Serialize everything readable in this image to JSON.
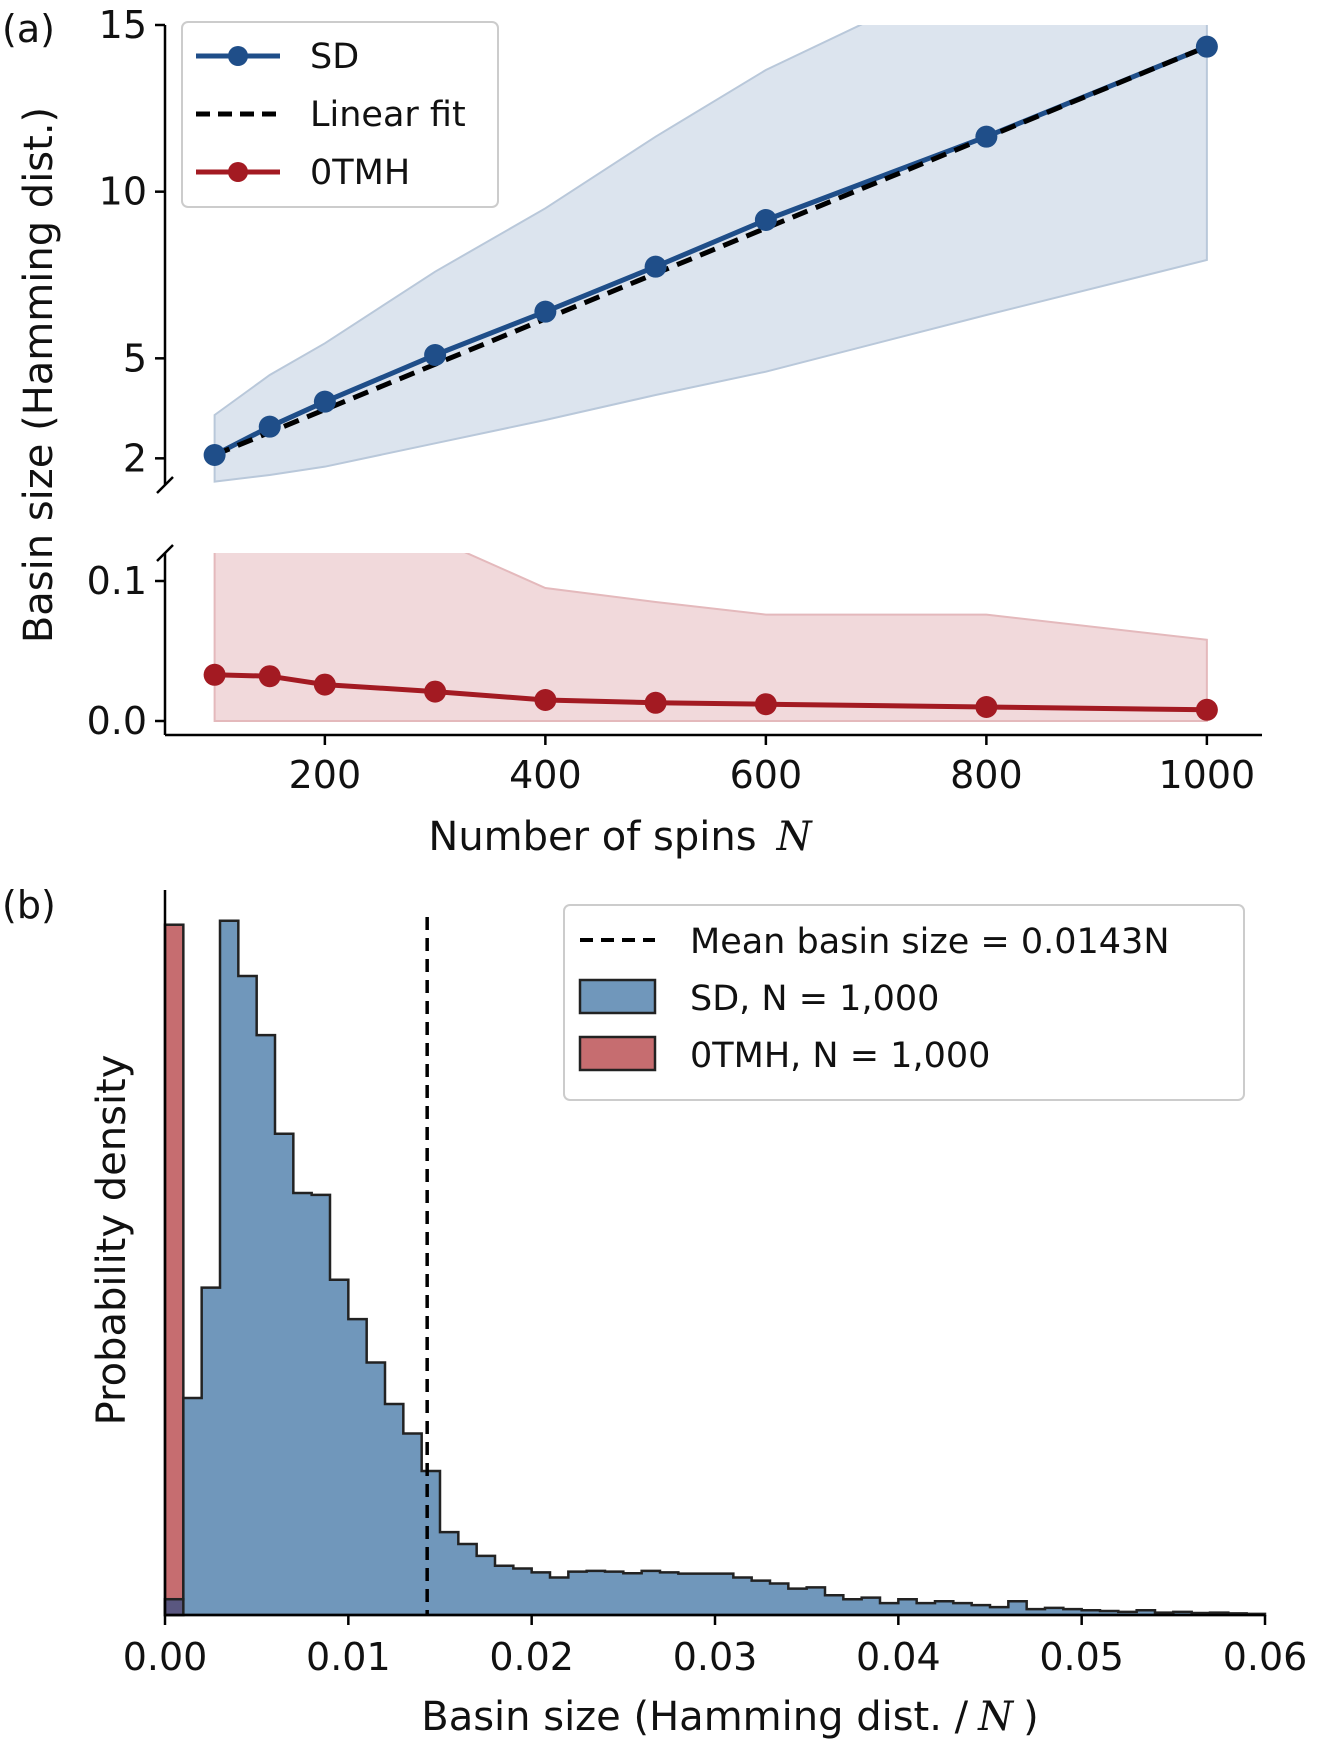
{
  "chart_data": [
    {
      "panel": "(a)",
      "type": "line",
      "ylabel": "Basin size (Hamming dist.)",
      "xlabel": "Number of spins",
      "xlabel_var": "N",
      "x": [
        100,
        150,
        200,
        300,
        400,
        500,
        600,
        800,
        1000
      ],
      "xlim": [
        55,
        1050
      ],
      "xticks": [
        "200",
        "400",
        "600",
        "800",
        "1000"
      ],
      "xtick_values": [
        200,
        400,
        600,
        800,
        1000
      ],
      "broken_y_axis": true,
      "upper": {
        "ylim": [
          1.2,
          15
        ],
        "yticks": [
          "2",
          "5",
          "10",
          "15"
        ],
        "ytick_values": [
          2,
          5,
          10,
          15
        ]
      },
      "lower": {
        "ylim": [
          -0.01,
          0.12
        ],
        "yticks": [
          "0.0",
          "0.1"
        ],
        "ytick_values": [
          0.0,
          0.1
        ]
      },
      "series": [
        {
          "name": "SD",
          "color": "#1f4e89",
          "values": [
            2.1,
            2.95,
            3.7,
            5.1,
            6.4,
            7.75,
            9.15,
            11.65,
            14.35
          ],
          "band_low": [
            1.3,
            1.5,
            1.75,
            2.45,
            3.15,
            3.9,
            4.6,
            6.3,
            7.95
          ],
          "band_high": [
            3.3,
            4.5,
            5.45,
            7.6,
            9.5,
            11.65,
            13.65,
            16.8,
            20.0
          ],
          "band_color": "#dce4ee"
        },
        {
          "name": "Linear fit",
          "color": "#000000",
          "style": "dashed",
          "values": [
            2.1,
            14.35
          ],
          "x": [
            100,
            1000
          ]
        },
        {
          "name": "0TMH",
          "color": "#a31a22",
          "values": [
            0.033,
            0.032,
            0.026,
            0.021,
            0.015,
            0.013,
            0.012,
            0.01,
            0.008
          ],
          "band_low": [
            0,
            0,
            0,
            0,
            0,
            0,
            0,
            0,
            0
          ],
          "band_high": [
            0.13,
            0.13,
            0.13,
            0.13,
            0.095,
            0.085,
            0.076,
            0.076,
            0.058
          ],
          "band_color": "#f1d9db"
        }
      ],
      "legend": [
        "SD",
        "Linear fit",
        "0TMH"
      ],
      "legend_position": "top-left"
    },
    {
      "panel": "(b)",
      "type": "histogram",
      "xlabel": "Basin size (Hamming dist. /",
      "xlabel_var": "N",
      "xlabel_suffix": ")",
      "ylabel": "Probability density",
      "xlim": [
        0,
        0.06
      ],
      "xticks": [
        "0.00",
        "0.01",
        "0.02",
        "0.03",
        "0.04",
        "0.05",
        "0.06"
      ],
      "xtick_values": [
        0,
        0.01,
        0.02,
        0.03,
        0.04,
        0.05,
        0.06
      ],
      "mean_line": {
        "label": "Mean basin size = 0.0143N",
        "x": 0.0143
      },
      "legend": [
        "Mean basin size = 0.0143N",
        "SD, N = 1,000",
        "0TMH, N = 1,000"
      ],
      "legend_position": "top-right",
      "series": [
        {
          "name": "SD, N = 1,000",
          "color": "#7097bb",
          "bin_width": 0.001,
          "values": [
            0.4,
            5.5,
            8.3,
            17.6,
            16.2,
            14.7,
            12.2,
            10.7,
            10.65,
            8.5,
            7.5,
            6.4,
            5.35,
            4.6,
            3.65,
            2.1,
            1.8,
            1.5,
            1.25,
            1.18,
            1.08,
            0.95,
            1.1,
            1.12,
            1.1,
            1.06,
            1.12,
            1.08,
            1.05,
            1.05,
            1.05,
            0.95,
            0.87,
            0.8,
            0.67,
            0.7,
            0.5,
            0.4,
            0.44,
            0.3,
            0.4,
            0.3,
            0.35,
            0.3,
            0.25,
            0.2,
            0.35,
            0.15,
            0.18,
            0.15,
            0.12,
            0.1,
            0.08,
            0.12,
            0.06,
            0.08,
            0.05,
            0.06,
            0.04,
            0.03
          ],
          "bin_edges_note": "first bins: [0.0009,0.0019]=4.6 then per 0.001"
        },
        {
          "name": "0TMH, N = 1,000",
          "color": "#c66d70",
          "values": [
            17.5
          ]
        }
      ]
    }
  ]
}
